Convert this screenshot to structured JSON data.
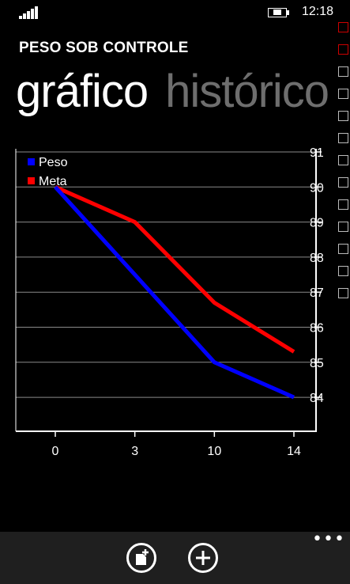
{
  "status_bar": {
    "time": "12:18",
    "signal_icon": "signal-strength-icon",
    "battery_icon": "battery-charging-icon"
  },
  "app": {
    "title": "PESO SOB CONTROLE"
  },
  "pivot": {
    "items": [
      {
        "label": "gráfico"
      },
      {
        "label": "histórico"
      }
    ]
  },
  "app_bar": {
    "buttons": [
      {
        "icon": "add-note-icon"
      },
      {
        "icon": "add-icon"
      }
    ],
    "more_icon": "more-ellipsis-icon"
  },
  "colors": {
    "peso": "#0000ff",
    "meta": "#ff0000",
    "app_bar_bg": "#1f1f1f"
  },
  "chart_data": {
    "type": "line",
    "x": [
      "0",
      "3",
      "10",
      "14"
    ],
    "series": [
      {
        "name": "Peso",
        "values": [
          90,
          87.5,
          85,
          84
        ],
        "color": "#0000ff"
      },
      {
        "name": "Meta",
        "values": [
          90,
          89,
          86.7,
          85.3
        ],
        "color": "#ff0000"
      }
    ],
    "ylim": [
      83,
      91
    ],
    "yticks": [
      91,
      90,
      89,
      88,
      87,
      86,
      85,
      84
    ],
    "grid": true,
    "legend": "top-left",
    "title": "",
    "xlabel": "",
    "ylabel": ""
  }
}
